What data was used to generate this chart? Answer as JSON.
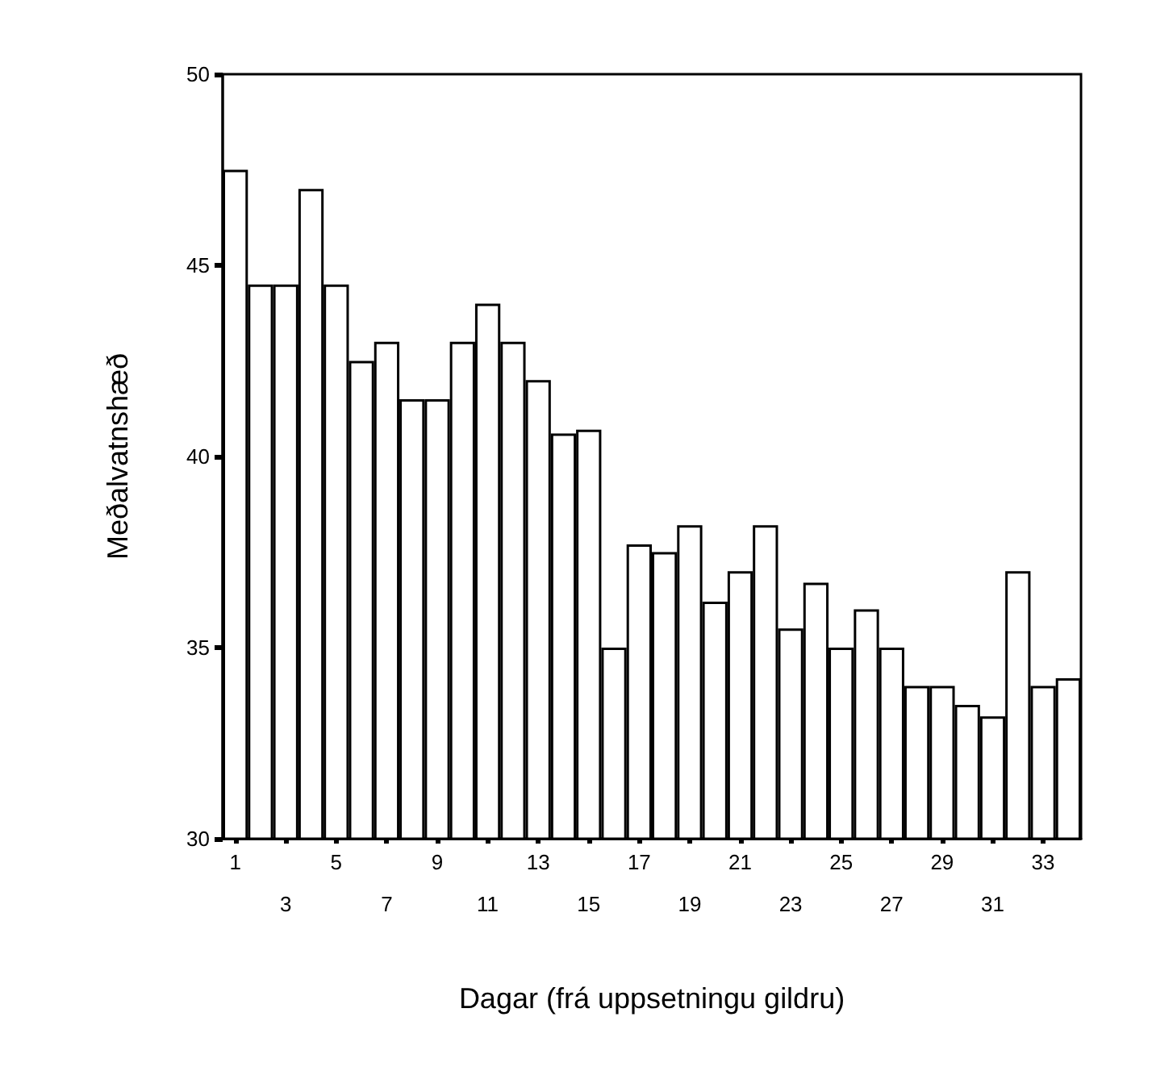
{
  "chart_data": {
    "type": "bar",
    "xlabel": "Dagar (frá uppsetningu gildru)",
    "ylabel": "Meðalvatnshæð",
    "categories": [
      "1",
      null,
      "3",
      null,
      "5",
      null,
      "7",
      null,
      "9",
      null,
      "11",
      null,
      "13",
      null,
      "15",
      null,
      "17",
      null,
      "19",
      null,
      "21",
      null,
      "23",
      null,
      "25",
      null,
      "27",
      null,
      "29",
      null,
      "31",
      null,
      "33",
      null
    ],
    "values": [
      47.5,
      44.5,
      44.5,
      47,
      44.5,
      42.5,
      43,
      41.5,
      41.5,
      43,
      44,
      43,
      42,
      40.6,
      40.7,
      35,
      37.7,
      37.5,
      38.2,
      36.2,
      37,
      38.2,
      35.5,
      36.7,
      35,
      36,
      35,
      34,
      34,
      33.5,
      33.2,
      37,
      34,
      34.2
    ],
    "color": "#ffffff",
    "ylim": [
      30,
      50
    ],
    "yticks": [
      30,
      35,
      40,
      45,
      50
    ],
    "grid": false
  }
}
